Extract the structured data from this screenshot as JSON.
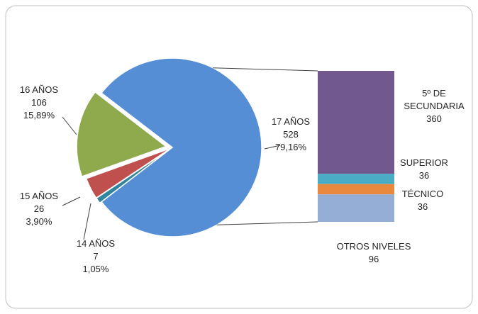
{
  "chart_data": {
    "type": "pie",
    "categories": [
      "17 AÑOS",
      "14 AÑOS",
      "15 AÑOS",
      "16 AÑOS"
    ],
    "values": [
      528,
      7,
      26,
      106
    ],
    "percent_labels": [
      "79,16%",
      "1,05%",
      "3,90%",
      "15,89%"
    ],
    "colors": [
      "#558ed5",
      "#31859c",
      "#c0504d",
      "#8faa4c"
    ],
    "breakdown": {
      "categories": [
        "5º DE SECUNDARIA",
        "SUPERIOR",
        "TÉCNICO",
        "OTROS NIVELES"
      ],
      "values": [
        360,
        36,
        36,
        96
      ],
      "colors": [
        "#71588f",
        "#4bacc6",
        "#e8893e",
        "#95aed6"
      ]
    }
  }
}
